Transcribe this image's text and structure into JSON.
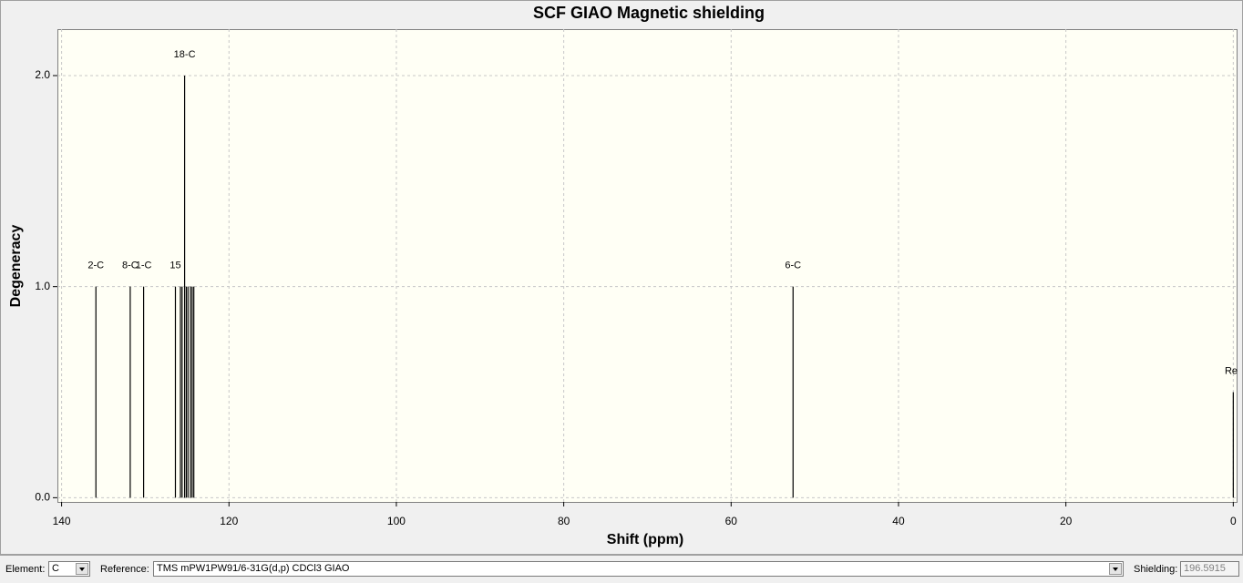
{
  "chart_data": {
    "type": "stick",
    "title": "SCF GIAO Magnetic shielding",
    "x_label": "Shift (ppm)",
    "y_label": "Degeneracy",
    "x": [
      135.9,
      131.8,
      130.2,
      126.4,
      125.8,
      125.6,
      125.3,
      125.1,
      124.9,
      124.6,
      124.4,
      124.2,
      52.6,
      0
    ],
    "values": [
      1,
      1,
      1,
      1,
      1,
      1,
      2,
      1,
      1,
      1,
      1,
      1,
      1,
      0.5
    ],
    "value_labels": [
      "2-C",
      "8-C",
      "1-C",
      "15",
      null,
      null,
      "18-C",
      null,
      null,
      null,
      null,
      null,
      "6-C",
      "Re"
    ],
    "color": "#000000",
    "xlim": [
      140.5,
      -0.4
    ],
    "xticks": [
      140,
      120,
      100,
      80,
      60,
      40,
      20,
      0
    ],
    "ylim": [
      -0.02,
      2.22
    ],
    "yticks": [
      {
        "value": 0,
        "label": "0.0"
      },
      {
        "value": 1,
        "label": "1.0"
      },
      {
        "value": 2,
        "label": "2.0"
      }
    ],
    "grid": true
  },
  "controls": {
    "element_label": "Element:",
    "element_value": "C",
    "reference_label": "Reference:",
    "reference_value": "TMS mPW1PW91/6-31G(d,p) CDCl3 GIAO",
    "shielding_label": "Shielding:",
    "shielding_value": "196.5915"
  }
}
